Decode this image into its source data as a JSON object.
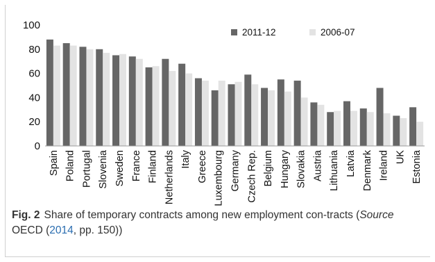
{
  "chart_data": {
    "type": "bar",
    "categories": [
      "Spain",
      "Poland",
      "Portugal",
      "Slovenia",
      "Sweden",
      "France",
      "Finland",
      "Netherlands",
      "Italy",
      "Greece",
      "Luxembourg",
      "Germany",
      "Czech Rep.",
      "Belgium",
      "Hungary",
      "Slovakia",
      "Austria",
      "Lithuania",
      "Latvia",
      "Denmark",
      "Ireland",
      "UK",
      "Estonia"
    ],
    "series": [
      {
        "name": "2011-12",
        "color": "#666666",
        "values": [
          88,
          85,
          82,
          80,
          75,
          74,
          65,
          72,
          68,
          56,
          46,
          51,
          59,
          48,
          55,
          54,
          36,
          28,
          37,
          31,
          48,
          25,
          32
        ]
      },
      {
        "name": "2006-07",
        "color": "#e3e3e3",
        "values": [
          83,
          83,
          80,
          77,
          76,
          72,
          66,
          62,
          60,
          54,
          54,
          53,
          51,
          46,
          45,
          40,
          34,
          29,
          29,
          28,
          27,
          23,
          20
        ]
      }
    ],
    "ylim": [
      0,
      100
    ],
    "yticks": [
      0,
      20,
      40,
      60,
      80,
      100
    ],
    "legend": "top-right"
  },
  "caption": {
    "label": "Fig. 2",
    "text_before": "Share of temporary contracts among new employment con-tracts (",
    "source_word": "Source",
    "source_org": " OECD (",
    "year_link": "2014",
    "text_after": ", pp. 150))"
  }
}
